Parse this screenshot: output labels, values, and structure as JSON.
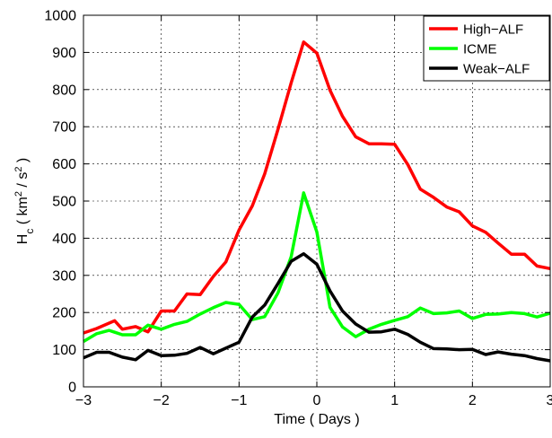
{
  "chart_data": {
    "type": "line",
    "xlabel": "Time ( Days )",
    "ylabel": {
      "base": "H",
      "sub": "c",
      "open": " ( km",
      "sup1": "2",
      "mid": " / s",
      "sup2": "2",
      "close": " )"
    },
    "xlim": [
      -3,
      3
    ],
    "ylim": [
      0,
      1000
    ],
    "xticks": [
      -3,
      -2,
      -1,
      0,
      1,
      2,
      3
    ],
    "yticks": [
      0,
      100,
      200,
      300,
      400,
      500,
      600,
      700,
      800,
      900,
      1000
    ],
    "xtick_labels": [
      "−3",
      "−2",
      "−1",
      "0",
      "1",
      "2",
      "3"
    ],
    "ytick_labels": [
      "0",
      "100",
      "200",
      "300",
      "400",
      "500",
      "600",
      "700",
      "800",
      "900",
      "1000"
    ],
    "grid": true,
    "legend_position": "top-right",
    "series": [
      {
        "name": "High−ALF",
        "color": "#ff0000",
        "x": [
          -3.0,
          -2.83,
          -2.6,
          -2.5,
          -2.33,
          -2.17,
          -2.0,
          -1.83,
          -1.67,
          -1.5,
          -1.33,
          -1.17,
          -1.0,
          -0.83,
          -0.67,
          -0.5,
          -0.33,
          -0.17,
          -0.0,
          0.17,
          0.33,
          0.5,
          0.67,
          0.83,
          1.0,
          1.17,
          1.33,
          1.5,
          1.67,
          1.83,
          2.0,
          2.17,
          2.33,
          2.5,
          2.67,
          2.83,
          3.0
        ],
        "y": [
          145,
          157,
          178,
          155,
          162,
          148,
          204,
          204,
          250,
          248,
          297,
          336,
          422,
          487,
          573,
          693,
          818,
          928,
          898,
          798,
          728,
          673,
          654,
          654,
          653,
          598,
          532,
          510,
          484,
          471,
          433,
          416,
          387,
          357,
          357,
          325,
          318
        ]
      },
      {
        "name": "ICME",
        "color": "#00ff00",
        "x": [
          -3.0,
          -2.83,
          -2.67,
          -2.5,
          -2.33,
          -2.17,
          -2.0,
          -1.83,
          -1.67,
          -1.5,
          -1.33,
          -1.17,
          -1.0,
          -0.83,
          -0.67,
          -0.5,
          -0.33,
          -0.17,
          -0.0,
          0.17,
          0.33,
          0.5,
          0.67,
          0.83,
          1.0,
          1.17,
          1.33,
          1.5,
          1.67,
          1.83,
          2.0,
          2.17,
          2.33,
          2.5,
          2.67,
          2.83,
          3.0
        ],
        "y": [
          122,
          143,
          152,
          140,
          140,
          166,
          155,
          168,
          176,
          196,
          213,
          227,
          222,
          181,
          189,
          253,
          350,
          522,
          417,
          214,
          161,
          135,
          155,
          168,
          179,
          189,
          212,
          197,
          199,
          204,
          184,
          195,
          196,
          200,
          197,
          188,
          198
        ]
      },
      {
        "name": "Weak−ALF",
        "color": "#000000",
        "x": [
          -3.0,
          -2.83,
          -2.67,
          -2.5,
          -2.33,
          -2.17,
          -2.0,
          -1.83,
          -1.67,
          -1.5,
          -1.33,
          -1.17,
          -1.0,
          -0.83,
          -0.67,
          -0.5,
          -0.33,
          -0.17,
          -0.0,
          0.17,
          0.33,
          0.5,
          0.67,
          0.83,
          1.0,
          1.17,
          1.33,
          1.5,
          1.67,
          1.83,
          2.0,
          2.17,
          2.33,
          2.5,
          2.67,
          2.83,
          3.0
        ],
        "y": [
          78,
          93,
          93,
          80,
          73,
          98,
          84,
          85,
          90,
          106,
          89,
          104,
          120,
          188,
          220,
          278,
          338,
          358,
          330,
          258,
          204,
          169,
          147,
          148,
          155,
          141,
          120,
          103,
          102,
          100,
          101,
          87,
          94,
          88,
          84,
          76,
          70
        ]
      }
    ]
  }
}
